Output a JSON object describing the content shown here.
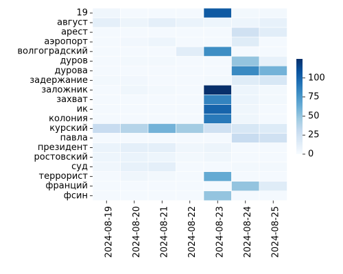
{
  "chart_data": {
    "type": "heatmap",
    "title": "",
    "xlabel": "",
    "ylabel": "",
    "x": [
      "2024-08-19",
      "2024-08-20",
      "2024-08-21",
      "2024-08-22",
      "2024-08-23",
      "2024-08-24",
      "2024-08-25"
    ],
    "y": [
      "19",
      "август",
      "арест",
      "аэропорт",
      "волгоградский",
      "дуров",
      "дурова",
      "задержание",
      "заложник",
      "захват",
      "ик",
      "колония",
      "курский",
      "павла",
      "президент",
      "ростовский",
      "суд",
      "террорист",
      "франций",
      "фсин"
    ],
    "values": [
      [
        5,
        2,
        2,
        2,
        105,
        3,
        3
      ],
      [
        12,
        7,
        12,
        8,
        6,
        6,
        10
      ],
      [
        2,
        2,
        2,
        2,
        2,
        25,
        14
      ],
      [
        2,
        4,
        6,
        2,
        2,
        15,
        2
      ],
      [
        2,
        2,
        2,
        14,
        80,
        2,
        2
      ],
      [
        2,
        3,
        3,
        2,
        2,
        50,
        10
      ],
      [
        2,
        2,
        2,
        2,
        2,
        82,
        60
      ],
      [
        3,
        4,
        2,
        2,
        3,
        15,
        20
      ],
      [
        2,
        5,
        3,
        2,
        125,
        6,
        3
      ],
      [
        2,
        2,
        2,
        2,
        85,
        6,
        3
      ],
      [
        2,
        2,
        2,
        2,
        100,
        5,
        2
      ],
      [
        2,
        2,
        2,
        2,
        90,
        5,
        2
      ],
      [
        30,
        38,
        60,
        45,
        25,
        20,
        16
      ],
      [
        2,
        2,
        2,
        2,
        2,
        30,
        25
      ],
      [
        8,
        12,
        12,
        5,
        7,
        2,
        2
      ],
      [
        6,
        8,
        6,
        3,
        5,
        2,
        2
      ],
      [
        5,
        10,
        12,
        2,
        2,
        3,
        3
      ],
      [
        2,
        5,
        3,
        2,
        65,
        2,
        2
      ],
      [
        2,
        2,
        2,
        2,
        2,
        50,
        15
      ],
      [
        2,
        2,
        2,
        2,
        50,
        2,
        2
      ]
    ],
    "colorbar": {
      "ticks": [
        0,
        25,
        50,
        75,
        100
      ],
      "min": 0,
      "max": 125
    },
    "colormap": "Blues",
    "cell_border_color": "#ffffff"
  }
}
